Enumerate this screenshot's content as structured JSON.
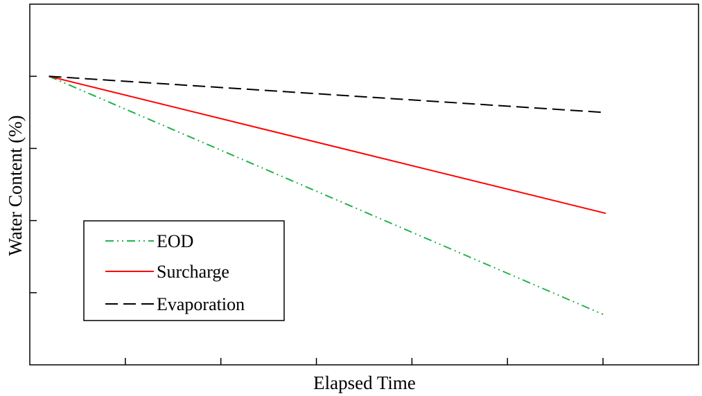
{
  "chart_data": {
    "type": "line",
    "title": "",
    "xlabel": "Elapsed Time",
    "ylabel": "Water Content (%)",
    "xlim": [
      0,
      7
    ],
    "ylim": [
      0,
      5
    ],
    "x_ticks": [
      1,
      2,
      3,
      4,
      5,
      6
    ],
    "y_ticks": [
      1,
      2,
      3,
      4
    ],
    "tick_labels_shown": false,
    "grid": false,
    "legend_position": "bottom-left",
    "series": [
      {
        "name": "EOD",
        "color": "#22b14c",
        "dash": "dash-dot-dot",
        "points": [
          [
            0.2,
            4.0
          ],
          [
            6.0,
            0.7
          ]
        ]
      },
      {
        "name": "Surcharge",
        "color": "#ff0000",
        "dash": "solid",
        "points": [
          [
            0.2,
            4.0
          ],
          [
            6.03,
            2.1
          ]
        ]
      },
      {
        "name": "Evaporation",
        "color": "#000000",
        "dash": "dashed",
        "points": [
          [
            0.2,
            4.0
          ],
          [
            6.0,
            3.5
          ]
        ]
      }
    ]
  }
}
